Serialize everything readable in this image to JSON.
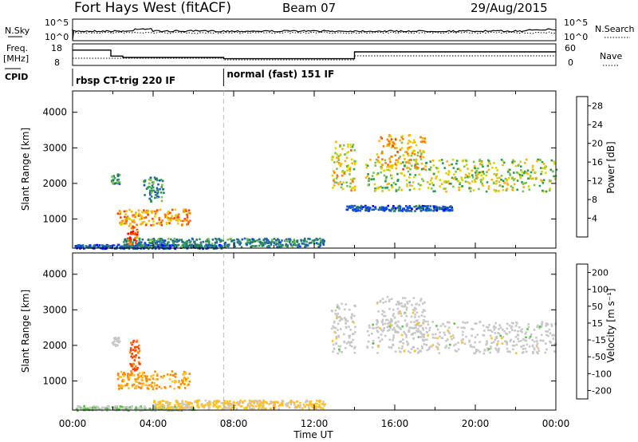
{
  "header": {
    "title": "Fort Hays West (fitACF)",
    "beam": "Beam 07",
    "date": "29/Aug/2015"
  },
  "top_panels": {
    "nsky_label": "N.Sky",
    "nsearch_label": "N.Search",
    "freq_label_1": "Freq.",
    "freq_label_2": "[MHz]",
    "nave_label": "Nave",
    "cpid_label": "CPID",
    "noise_ticks_left": [
      "10^5",
      "10^0"
    ],
    "noise_ticks_right": [
      "10^5",
      "10^0"
    ],
    "freq_ticks": [
      "18",
      "8"
    ],
    "nave_ticks": [
      "60",
      "0"
    ]
  },
  "cpid_segments": [
    {
      "label": "rbsp CT-trig 220 IF",
      "start_hour": 0.0
    },
    {
      "label": "normal (fast) 151 IF",
      "start_hour": 7.5
    }
  ],
  "frequency_steps": [
    {
      "start": 0.0,
      "end": 1.9,
      "mhz": 15.5
    },
    {
      "start": 1.9,
      "end": 2.5,
      "mhz": 12.2
    },
    {
      "start": 2.5,
      "end": 7.5,
      "mhz": 11.5
    },
    {
      "start": 7.5,
      "end": 14.0,
      "mhz": 10.8
    },
    {
      "start": 14.0,
      "end": 24.0,
      "mhz": 14.5
    }
  ],
  "chart_data": [
    {
      "type": "heatmap",
      "ylabel": "Slant Range [km]",
      "xlabel": "",
      "xlim": [
        0,
        24
      ],
      "ylim": [
        180,
        4600
      ],
      "yticks": [
        "1000",
        "2000",
        "3000",
        "4000"
      ],
      "colorbar": {
        "label": "Power [dB]",
        "ticks": [
          "4",
          "8",
          "12",
          "16",
          "20",
          "24",
          "28"
        ],
        "range": [
          0,
          30
        ],
        "colors": [
          "#0000ff",
          "#0040ff",
          "#1e62b8",
          "#2a7a6a",
          "#2e9a52",
          "#7fc050",
          "#d9d400",
          "#ffb000",
          "#ff7a00",
          "#ff4000",
          "#ff0000"
        ]
      },
      "regions": [
        {
          "t": [
            0.1,
            7.5
          ],
          "r": [
            190,
            300
          ],
          "value": 6
        },
        {
          "t": [
            2.5,
            12.5
          ],
          "r": [
            230,
            480
          ],
          "value": 10
        },
        {
          "t": [
            2.2,
            5.8
          ],
          "r": [
            850,
            1300
          ],
          "value": 22
        },
        {
          "t": [
            2.7,
            3.2
          ],
          "r": [
            300,
            850
          ],
          "value": 26
        },
        {
          "t": [
            1.9,
            2.3
          ],
          "r": [
            2000,
            2300
          ],
          "value": 12
        },
        {
          "t": [
            3.5,
            4.5
          ],
          "r": [
            1500,
            2200
          ],
          "value": 10
        },
        {
          "t": [
            12.8,
            14.0
          ],
          "r": [
            1800,
            3200
          ],
          "value": 18
        },
        {
          "t": [
            14.5,
            24.0
          ],
          "r": [
            1800,
            2700
          ],
          "value": 16
        },
        {
          "t": [
            15.0,
            17.5
          ],
          "r": [
            2400,
            3400
          ],
          "value": 20
        },
        {
          "t": [
            13.5,
            19.0
          ],
          "r": [
            1250,
            1400
          ],
          "value": 6
        }
      ]
    },
    {
      "type": "heatmap",
      "ylabel": "Slant Range [km]",
      "xlabel": "Time UT",
      "xlim": [
        0,
        24
      ],
      "ylim": [
        180,
        4600
      ],
      "xticks": [
        "00:00",
        "04:00",
        "08:00",
        "12:00",
        "16:00",
        "20:00",
        "00:00"
      ],
      "yticks": [
        "1000",
        "2000",
        "3000",
        "4000"
      ],
      "colorbar": {
        "label": "Velocity [m s⁻¹]",
        "ticks": [
          "200",
          "100",
          "50",
          "15",
          "-15",
          "-50",
          "-100",
          "-200"
        ],
        "range": [
          -250,
          250
        ],
        "colors": [
          "#2233cc",
          "#2a56a8",
          "#2f8a5a",
          "#5dc04a",
          "#c8c8c8",
          "#ffc02a",
          "#ff8a00",
          "#ff4000",
          "#e00000"
        ]
      },
      "regions": [
        {
          "t": [
            0.1,
            6.0
          ],
          "r": [
            190,
            320
          ],
          "value": 20
        },
        {
          "t": [
            4.0,
            12.5
          ],
          "r": [
            240,
            480
          ],
          "value": -40
        },
        {
          "t": [
            2.2,
            5.8
          ],
          "r": [
            800,
            1300
          ],
          "value": -90
        },
        {
          "t": [
            2.8,
            3.3
          ],
          "r": [
            1300,
            2200
          ],
          "value": -150
        },
        {
          "t": [
            1.9,
            2.3
          ],
          "r": [
            2000,
            2250
          ],
          "value": 0
        },
        {
          "t": [
            12.8,
            14.0
          ],
          "r": [
            1800,
            3200
          ],
          "value": 0
        },
        {
          "t": [
            14.5,
            24.0
          ],
          "r": [
            1800,
            2700
          ],
          "value": 0
        },
        {
          "t": [
            15.0,
            17.5
          ],
          "r": [
            2400,
            3400
          ],
          "value": 0
        }
      ]
    }
  ]
}
